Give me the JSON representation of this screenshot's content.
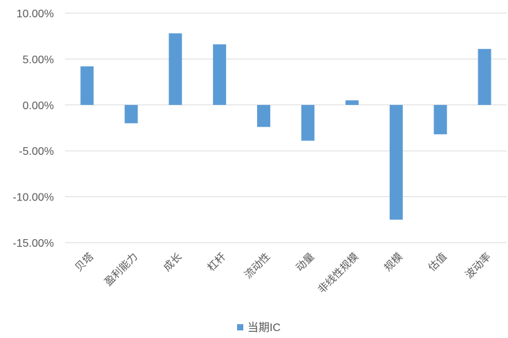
{
  "chart_data": {
    "type": "bar",
    "title": "",
    "xlabel": "",
    "ylabel": "",
    "categories": [
      "贝塔",
      "盈利能力",
      "成长",
      "杠杆",
      "流动性",
      "动量",
      "非线性规模",
      "规模",
      "估值",
      "波动率"
    ],
    "series": [
      {
        "name": "当期IC",
        "values": [
          4.2,
          -2.0,
          7.8,
          6.6,
          -2.4,
          -3.9,
          0.5,
          -12.5,
          -3.2,
          6.1
        ]
      }
    ],
    "ylim": [
      -15,
      10
    ],
    "yticks": [
      10,
      5,
      0,
      -5,
      -10,
      -15
    ],
    "ytick_labels": [
      "10.00%",
      "5.00%",
      "0.00%",
      "-5.00%",
      "-10.00%",
      "-15.00%"
    ],
    "grid": true,
    "legend_position": "bottom",
    "colors": {
      "bar": "#5B9BD5",
      "grid": "#D9D9D9",
      "text": "#595959"
    }
  }
}
